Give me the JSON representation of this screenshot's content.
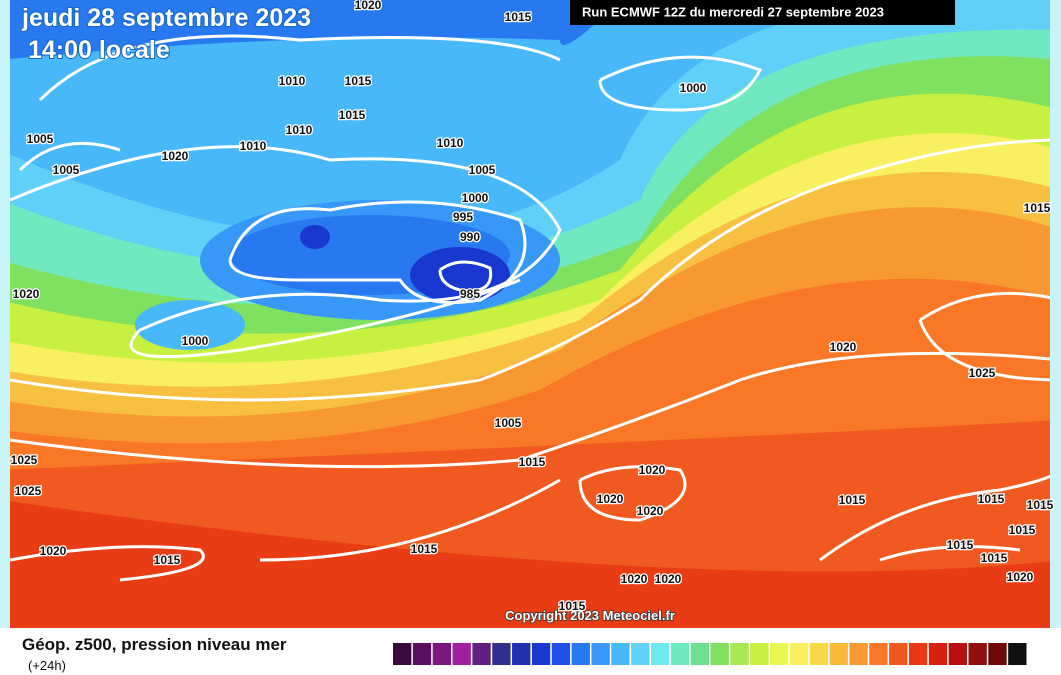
{
  "header": {
    "date": "jeudi 28 septembre 2023",
    "time": "14:00 locale",
    "run": "Run ECMWF 12Z du mercredi 27 septembre 2023"
  },
  "map": {
    "copyright": "Copyright 2023 Meteociel.fr",
    "isobars": [
      "1020",
      "1015",
      "1010",
      "1015",
      "1015",
      "1000",
      "1005",
      "1005",
      "1020",
      "1010",
      "1010",
      "1010",
      "1005",
      "1000",
      "995",
      "990",
      "985",
      "1020",
      "1000",
      "1005",
      "1015",
      "1015",
      "1025",
      "1025",
      "1020",
      "1025",
      "1020",
      "1020",
      "1020",
      "1020",
      "1015",
      "1015",
      "1015",
      "1015",
      "1015",
      "1015",
      "1015",
      "1015",
      "1020",
      "1015",
      "1020",
      "1020"
    ]
  },
  "legend": {
    "title": "Géop. z500, pression niveau mer",
    "subtitle": "(+24h)",
    "colors": [
      "#3a0a3a",
      "#5a1060",
      "#7a1880",
      "#a020a0",
      "#602080",
      "#303090",
      "#2030b0",
      "#1838d0",
      "#2050e8",
      "#2878f0",
      "#3898f8",
      "#48b8f8",
      "#60d0f8",
      "#70e8f0",
      "#70e8c0",
      "#70e090",
      "#80e060",
      "#a8e850",
      "#c8f040",
      "#e8f850",
      "#f8f060",
      "#f8d848",
      "#f8b838",
      "#f89830",
      "#f87828",
      "#f05820",
      "#e83818",
      "#d82010",
      "#b81010",
      "#901010",
      "#700808",
      "#101010"
    ]
  }
}
